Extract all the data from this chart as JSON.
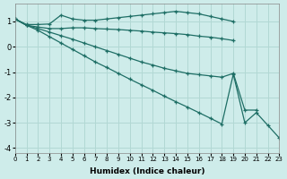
{
  "xlabel": "Humidex (Indice chaleur)",
  "ylabel": "",
  "bg_color": "#ceecea",
  "grid_color": "#b2d8d4",
  "line_color": "#1e6e65",
  "xlim": [
    0,
    23
  ],
  "ylim": [
    -4.2,
    1.7
  ],
  "xticks": [
    0,
    1,
    2,
    3,
    4,
    5,
    6,
    7,
    8,
    9,
    10,
    11,
    12,
    13,
    14,
    15,
    16,
    17,
    18,
    19,
    20,
    21,
    22,
    23
  ],
  "yticks": [
    -4,
    -3,
    -2,
    -1,
    0,
    1
  ],
  "lines": [
    {
      "x": [
        0,
        1,
        2,
        3,
        4,
        5,
        6,
        7,
        8,
        9,
        10,
        11,
        12,
        13,
        14,
        15,
        16,
        17,
        18,
        19
      ],
      "y": [
        1.1,
        0.88,
        0.88,
        0.9,
        1.25,
        1.1,
        1.05,
        1.05,
        1.1,
        1.15,
        1.2,
        1.25,
        1.3,
        1.35,
        1.4,
        1.35,
        1.3,
        1.2,
        1.1,
        1.0
      ]
    },
    {
      "x": [
        0,
        1,
        2,
        3,
        4,
        5,
        6,
        7,
        8,
        9,
        10,
        11,
        12,
        13,
        14,
        15,
        16,
        17,
        18,
        19
      ],
      "y": [
        1.1,
        0.85,
        0.78,
        0.72,
        0.72,
        0.75,
        0.75,
        0.72,
        0.7,
        0.68,
        0.65,
        0.62,
        0.58,
        0.55,
        0.52,
        0.48,
        0.42,
        0.38,
        0.32,
        0.25
      ]
    },
    {
      "x": [
        0,
        1,
        2,
        3,
        4,
        5,
        6,
        7,
        8,
        9,
        10,
        11,
        12,
        13,
        14,
        15,
        16,
        17,
        18,
        19,
        20,
        21
      ],
      "y": [
        1.1,
        0.85,
        0.72,
        0.58,
        0.44,
        0.3,
        0.15,
        0.0,
        -0.15,
        -0.3,
        -0.45,
        -0.6,
        -0.72,
        -0.85,
        -0.95,
        -1.05,
        -1.1,
        -1.15,
        -1.2,
        -1.05,
        -2.5,
        -2.5
      ]
    },
    {
      "x": [
        0,
        1,
        2,
        3,
        4,
        5,
        6,
        7,
        8,
        9,
        10,
        11,
        12,
        13,
        14,
        15,
        16,
        17,
        18,
        19,
        20,
        21,
        22,
        23
      ],
      "y": [
        1.1,
        0.85,
        0.65,
        0.4,
        0.15,
        -0.1,
        -0.35,
        -0.6,
        -0.82,
        -1.05,
        -1.28,
        -1.5,
        -1.72,
        -1.95,
        -2.17,
        -2.38,
        -2.6,
        -2.82,
        -3.05,
        -1.08,
        -3.0,
        -2.6,
        -3.1,
        -3.6
      ]
    }
  ]
}
